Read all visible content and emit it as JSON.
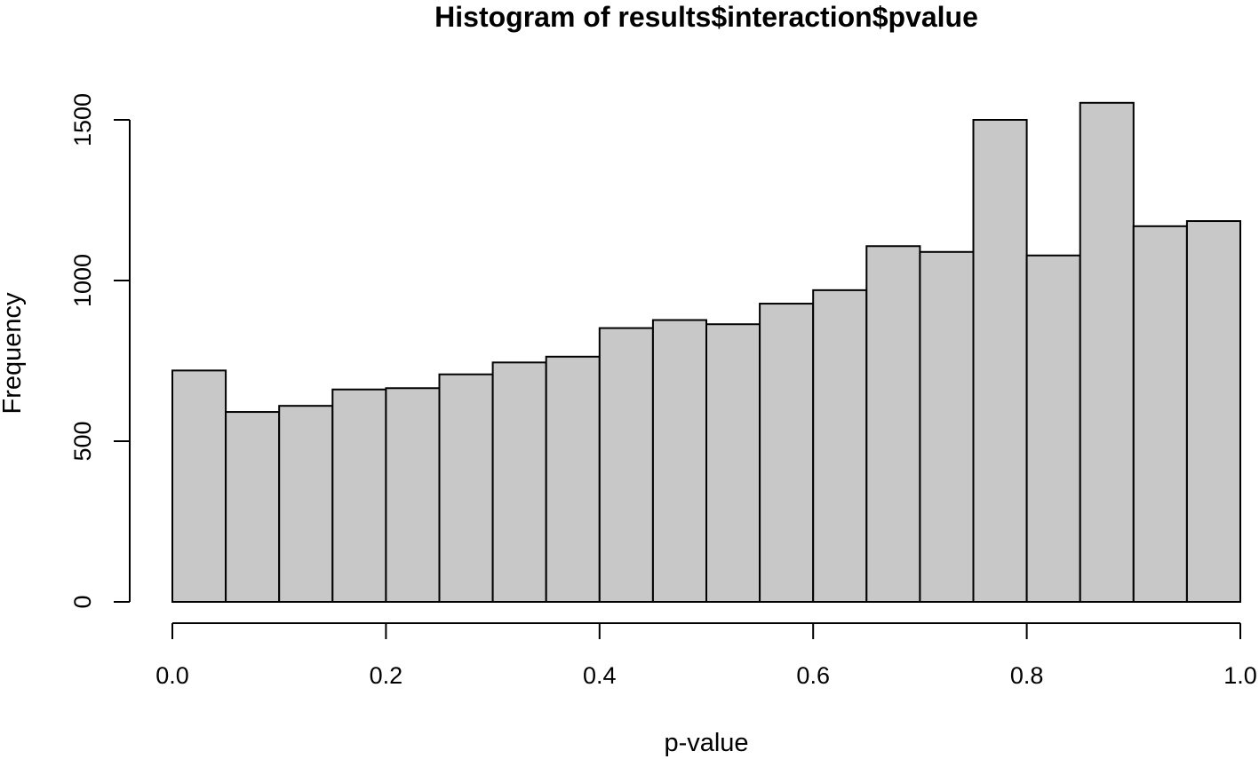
{
  "chart_data": {
    "type": "bar",
    "subtype": "histogram",
    "title": "Histogram of results$interaction$pvalue",
    "xlabel": "p-value",
    "ylabel": "Frequency",
    "xlim": [
      0,
      1
    ],
    "ylim": [
      0,
      1550
    ],
    "bin_width": 0.05,
    "bins": [
      {
        "start": 0.0,
        "end": 0.05,
        "count": 720
      },
      {
        "start": 0.05,
        "end": 0.1,
        "count": 591
      },
      {
        "start": 0.1,
        "end": 0.15,
        "count": 610
      },
      {
        "start": 0.15,
        "end": 0.2,
        "count": 661
      },
      {
        "start": 0.2,
        "end": 0.25,
        "count": 665
      },
      {
        "start": 0.25,
        "end": 0.3,
        "count": 708
      },
      {
        "start": 0.3,
        "end": 0.35,
        "count": 745
      },
      {
        "start": 0.35,
        "end": 0.4,
        "count": 763
      },
      {
        "start": 0.4,
        "end": 0.45,
        "count": 852
      },
      {
        "start": 0.45,
        "end": 0.5,
        "count": 877
      },
      {
        "start": 0.5,
        "end": 0.55,
        "count": 864
      },
      {
        "start": 0.55,
        "end": 0.6,
        "count": 928
      },
      {
        "start": 0.6,
        "end": 0.65,
        "count": 970
      },
      {
        "start": 0.65,
        "end": 0.7,
        "count": 1107
      },
      {
        "start": 0.7,
        "end": 0.75,
        "count": 1089
      },
      {
        "start": 0.75,
        "end": 0.8,
        "count": 1500
      },
      {
        "start": 0.8,
        "end": 0.85,
        "count": 1078
      },
      {
        "start": 0.85,
        "end": 0.9,
        "count": 1553
      },
      {
        "start": 0.9,
        "end": 0.95,
        "count": 1169
      },
      {
        "start": 0.95,
        "end": 1.0,
        "count": 1185
      }
    ],
    "x_ticks": [
      {
        "value": 0.0,
        "label": "0.0"
      },
      {
        "value": 0.2,
        "label": "0.2"
      },
      {
        "value": 0.4,
        "label": "0.4"
      },
      {
        "value": 0.6,
        "label": "0.6"
      },
      {
        "value": 0.8,
        "label": "0.8"
      },
      {
        "value": 1.0,
        "label": "1.0"
      }
    ],
    "y_ticks": [
      {
        "value": 0,
        "label": "0"
      },
      {
        "value": 500,
        "label": "500"
      },
      {
        "value": 1000,
        "label": "1000"
      },
      {
        "value": 1500,
        "label": "1500"
      }
    ],
    "grid": false,
    "legend": "none",
    "colors": {
      "bar_fill": "#c8c8c8",
      "bar_stroke": "#000000",
      "background": "#ffffff"
    }
  }
}
